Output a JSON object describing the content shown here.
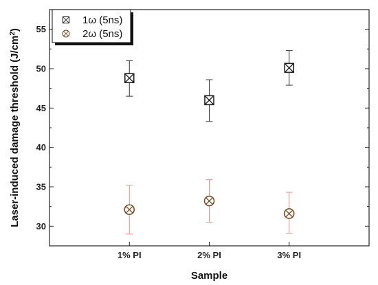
{
  "chart_data": {
    "type": "scatter",
    "title": "",
    "xlabel": "Sample",
    "ylabel": "Laser-induced damage threshold (J/cm",
    "ylabel_sup": "2",
    "ylabel_end": ")",
    "categories": [
      "1% PI",
      "2% PI",
      "3% PI"
    ],
    "ylim": [
      27.5,
      57.5
    ],
    "yticks": [
      30,
      35,
      40,
      45,
      50,
      55
    ],
    "grid": false,
    "legend_position": "top-left",
    "series": [
      {
        "name": "1ω (5ns)",
        "marker": "square-x",
        "color": "#222222",
        "errorbar_color": "#333333",
        "values": [
          48.8,
          46.0,
          50.1
        ],
        "err_low": [
          46.5,
          43.3,
          47.9
        ],
        "err_high": [
          51.0,
          48.6,
          52.3
        ]
      },
      {
        "name": "2ω (5ns)",
        "marker": "circle-x",
        "color": "#7a4b22",
        "errorbar_color": "#e58a8a",
        "values": [
          32.1,
          33.2,
          31.6
        ],
        "err_low": [
          29.0,
          30.5,
          29.1
        ],
        "err_high": [
          35.2,
          35.9,
          34.3
        ]
      }
    ]
  }
}
